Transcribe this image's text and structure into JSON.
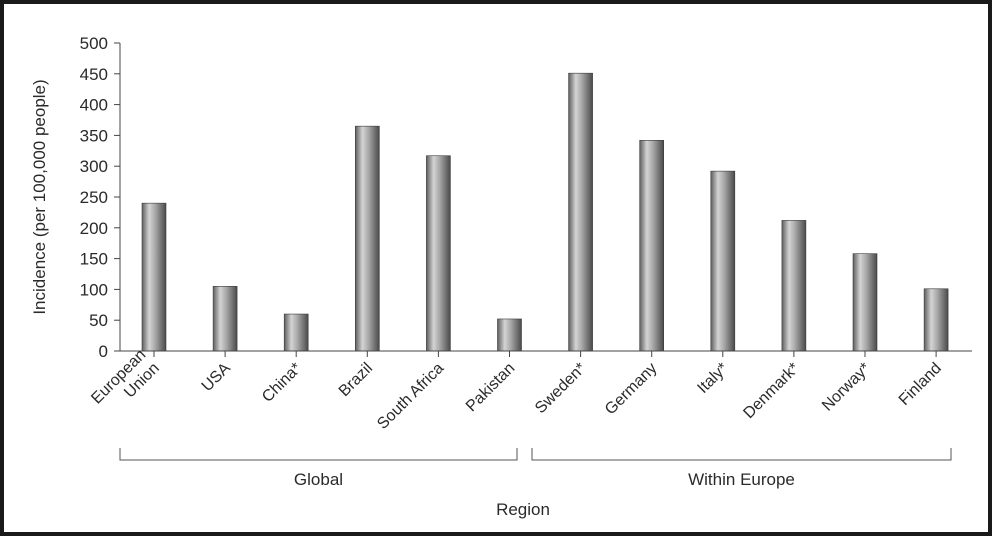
{
  "chart_data": {
    "type": "bar",
    "title": "",
    "xlabel": "Region",
    "ylabel": "Incidence (per 100,000 people)",
    "ylim": [
      0,
      500
    ],
    "yticks": [
      0,
      50,
      100,
      150,
      200,
      250,
      300,
      350,
      400,
      450,
      500
    ],
    "grid": false,
    "categories": [
      "European Union",
      "USA",
      "China*",
      "Brazil",
      "South Africa",
      "Pakistan",
      "Sweden*",
      "Germany",
      "Italy*",
      "Denmark*",
      "Norway*",
      "Finland"
    ],
    "category_lines": [
      [
        "European",
        "Union"
      ],
      [
        "USA"
      ],
      [
        "China*"
      ],
      [
        "Brazil"
      ],
      [
        "South Africa"
      ],
      [
        "Pakistan"
      ],
      [
        "Sweden*"
      ],
      [
        "Germany"
      ],
      [
        "Italy*"
      ],
      [
        "Denmark*"
      ],
      [
        "Norway*"
      ],
      [
        "Finland"
      ]
    ],
    "values": [
      240,
      105,
      60,
      365,
      317,
      52,
      451,
      342,
      292,
      212,
      158,
      101
    ],
    "groups": [
      {
        "label": "Global",
        "categories": [
          "European Union",
          "USA",
          "China*",
          "Brazil",
          "South Africa",
          "Pakistan"
        ]
      },
      {
        "label": "Within Europe",
        "categories": [
          "Sweden*",
          "Germany",
          "Italy*",
          "Denmark*",
          "Norway*",
          "Finland"
        ]
      }
    ],
    "bar_color": "#8c8c8c"
  }
}
